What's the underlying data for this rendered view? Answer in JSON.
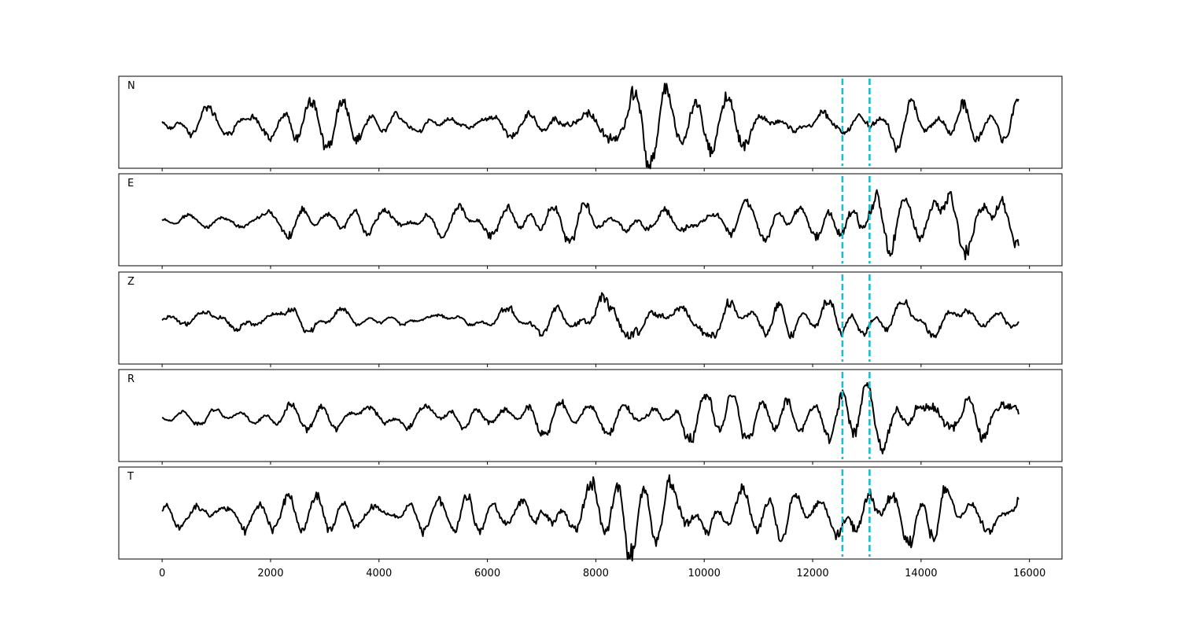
{
  "chart_data": {
    "type": "line",
    "panels": [
      "N",
      "E",
      "Z",
      "R",
      "T"
    ],
    "xlim": [
      -800,
      16600
    ],
    "x_ticks": [
      0,
      2000,
      4000,
      6000,
      8000,
      10000,
      12000,
      14000,
      16000
    ],
    "x_tick_labels": [
      "0",
      "2000",
      "4000",
      "6000",
      "8000",
      "10000",
      "12000",
      "14000",
      "16000"
    ],
    "x_range": [
      0,
      15800
    ],
    "y_axis_shown": false,
    "grid": false,
    "line_color": "#000000",
    "pick_color": "#17becf",
    "vertical_markers": [
      12550,
      13050
    ],
    "series": [
      {
        "label": "N",
        "envelope_x": [
          0,
          2000,
          4000,
          6000,
          7000,
          8000,
          9200,
          10500,
          12000,
          13000,
          14000,
          15800
        ],
        "envelope_amp": [
          0.4,
          0.55,
          0.45,
          0.35,
          0.45,
          0.8,
          0.95,
          0.6,
          0.45,
          0.65,
          0.6,
          0.5
        ],
        "noise_seed": 3
      },
      {
        "label": "E",
        "envelope_x": [
          0,
          1000,
          3000,
          6000,
          8000,
          10000,
          12000,
          12600,
          13500,
          15000,
          15800
        ],
        "envelope_amp": [
          0.12,
          0.25,
          0.4,
          0.4,
          0.45,
          0.45,
          0.4,
          0.85,
          0.8,
          0.9,
          0.6
        ],
        "noise_seed": 7
      },
      {
        "label": "Z",
        "envelope_x": [
          0,
          2000,
          4000,
          6000,
          7000,
          7800,
          8100,
          8600,
          9500,
          12000,
          13500,
          15800
        ],
        "envelope_amp": [
          0.35,
          0.3,
          0.2,
          0.2,
          0.35,
          0.75,
          0.95,
          0.75,
          0.4,
          0.4,
          0.45,
          0.3
        ],
        "noise_seed": 11
      },
      {
        "label": "R",
        "envelope_x": [
          0,
          1000,
          3000,
          6000,
          8000,
          10000,
          12000,
          12600,
          13500,
          15000,
          15800
        ],
        "envelope_amp": [
          0.1,
          0.2,
          0.35,
          0.4,
          0.45,
          0.5,
          0.4,
          0.9,
          0.85,
          0.8,
          0.65
        ],
        "noise_seed": 19
      },
      {
        "label": "T",
        "envelope_x": [
          0,
          2000,
          4000,
          6000,
          7500,
          8200,
          9200,
          10500,
          12000,
          13000,
          15800
        ],
        "envelope_amp": [
          0.45,
          0.5,
          0.5,
          0.4,
          0.6,
          0.85,
          0.95,
          0.65,
          0.5,
          0.7,
          0.55
        ],
        "noise_seed": 23
      }
    ]
  }
}
